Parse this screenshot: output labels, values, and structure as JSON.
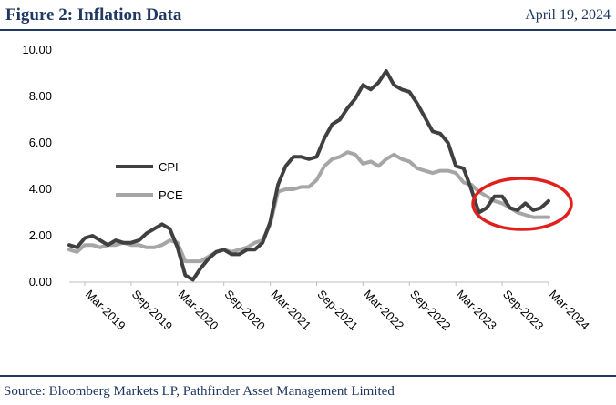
{
  "header": {
    "title": "Figure 2: Inflation Data",
    "date": "April 19, 2024"
  },
  "footer": {
    "source": "Source: Bloomberg Markets LP, Pathfinder Asset Management Limited"
  },
  "colors": {
    "brand": "#1f3864",
    "cpi": "#404040",
    "pce": "#a6a6a6",
    "highlight": "#e0201c"
  },
  "chart_data": {
    "type": "line",
    "title": "",
    "xlabel": "",
    "ylabel": "",
    "ylim": [
      0,
      10
    ],
    "yticks": [
      "0.00",
      "2.00",
      "4.00",
      "6.00",
      "8.00",
      "10.00"
    ],
    "x_tick_labels": [
      "Mar-2019",
      "Sep-2019",
      "Mar-2020",
      "Sep-2020",
      "Mar-2021",
      "Sep-2021",
      "Mar-2022",
      "Sep-2022",
      "Mar-2023",
      "Sep-2023",
      "Mar-2024"
    ],
    "x_start": "Jan-2019",
    "x_end": "Mar-2024",
    "legend": [
      "CPI",
      "PCE"
    ],
    "legend_position": "left-middle",
    "annotation": "red ellipse highlighting mid-2023 to early-2024",
    "series": [
      {
        "name": "CPI",
        "values": [
          1.6,
          1.5,
          1.9,
          2.0,
          1.8,
          1.6,
          1.8,
          1.7,
          1.7,
          1.8,
          2.1,
          2.3,
          2.5,
          2.3,
          1.5,
          0.3,
          0.1,
          0.6,
          1.0,
          1.3,
          1.4,
          1.2,
          1.2,
          1.4,
          1.4,
          1.7,
          2.6,
          4.2,
          5.0,
          5.4,
          5.4,
          5.3,
          5.4,
          6.2,
          6.8,
          7.0,
          7.5,
          7.9,
          8.5,
          8.3,
          8.6,
          9.1,
          8.5,
          8.3,
          8.2,
          7.7,
          7.1,
          6.5,
          6.4,
          6.0,
          5.0,
          4.9,
          4.0,
          3.0,
          3.2,
          3.7,
          3.7,
          3.2,
          3.1,
          3.4,
          3.1,
          3.2,
          3.5
        ]
      },
      {
        "name": "PCE",
        "values": [
          1.4,
          1.3,
          1.6,
          1.6,
          1.5,
          1.6,
          1.6,
          1.7,
          1.6,
          1.6,
          1.5,
          1.5,
          1.6,
          1.8,
          1.7,
          0.9,
          0.9,
          0.9,
          1.1,
          1.3,
          1.4,
          1.3,
          1.4,
          1.5,
          1.7,
          1.8,
          2.5,
          3.9,
          4.0,
          4.0,
          4.1,
          4.1,
          4.4,
          5.0,
          5.3,
          5.4,
          5.6,
          5.5,
          5.1,
          5.2,
          5.0,
          5.3,
          5.5,
          5.3,
          5.2,
          4.9,
          4.8,
          4.7,
          4.8,
          4.8,
          4.7,
          4.3,
          4.2,
          3.9,
          3.7,
          3.5,
          3.4,
          3.2,
          3.0,
          2.9,
          2.8,
          2.8,
          2.8
        ]
      }
    ]
  }
}
